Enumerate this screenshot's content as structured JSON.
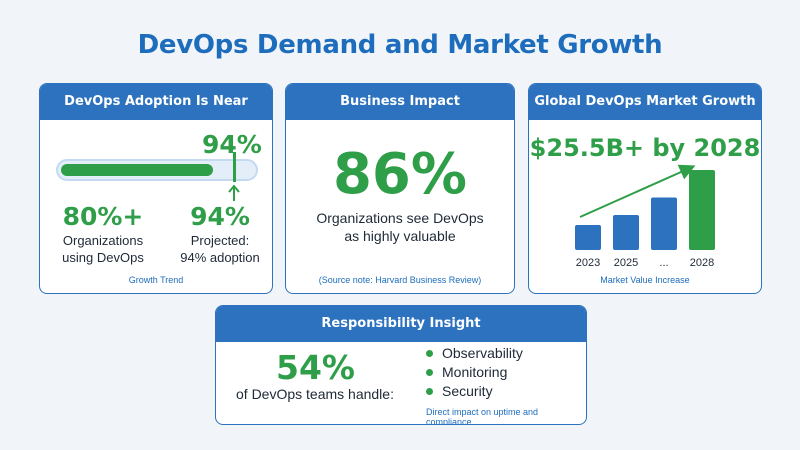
{
  "title": "DevOps Demand and Market Growth",
  "colors": {
    "brand_blue": "#2c72be",
    "green": "#2f9e48",
    "background": "#f1f5f9"
  },
  "adoption_card": {
    "header": "DevOps Adoption Is Near Universal",
    "current_adoption_fraction": 0.8,
    "marker_label": "94%",
    "stat_left_value": "80%+",
    "stat_left_label_line1": "Organizations",
    "stat_left_label_line2": "using DevOps",
    "stat_right_value": "94%",
    "stat_right_label_line1": "Projected:",
    "stat_right_label_line2": "94% adoption",
    "caption": "Growth Trend"
  },
  "impact_card": {
    "header": "Business Impact",
    "value": "86%",
    "text_line1": "Organizations see DevOps",
    "text_line2": "as highly valuable",
    "caption": "(Source note: Harvard Business Review)"
  },
  "market_card": {
    "header": "Global DevOps Market Growth",
    "headline": "$25.5B+ by 2028",
    "caption": "Market Value Increase"
  },
  "chart_data": {
    "type": "bar",
    "categories": [
      "2023",
      "2025",
      "...",
      "2028"
    ],
    "values": [
      1,
      1.4,
      2.1,
      3.2
    ],
    "highlight_index": 3,
    "trend_arrow": true,
    "title": "",
    "xlabel": "",
    "ylabel": ""
  },
  "responsibility_card": {
    "header": "Responsibility Insight",
    "value": "54%",
    "label": "of DevOps teams handle:",
    "items": [
      "Observability",
      "Monitoring",
      "Security"
    ],
    "caption": "Direct impact on uptime and compliance"
  }
}
